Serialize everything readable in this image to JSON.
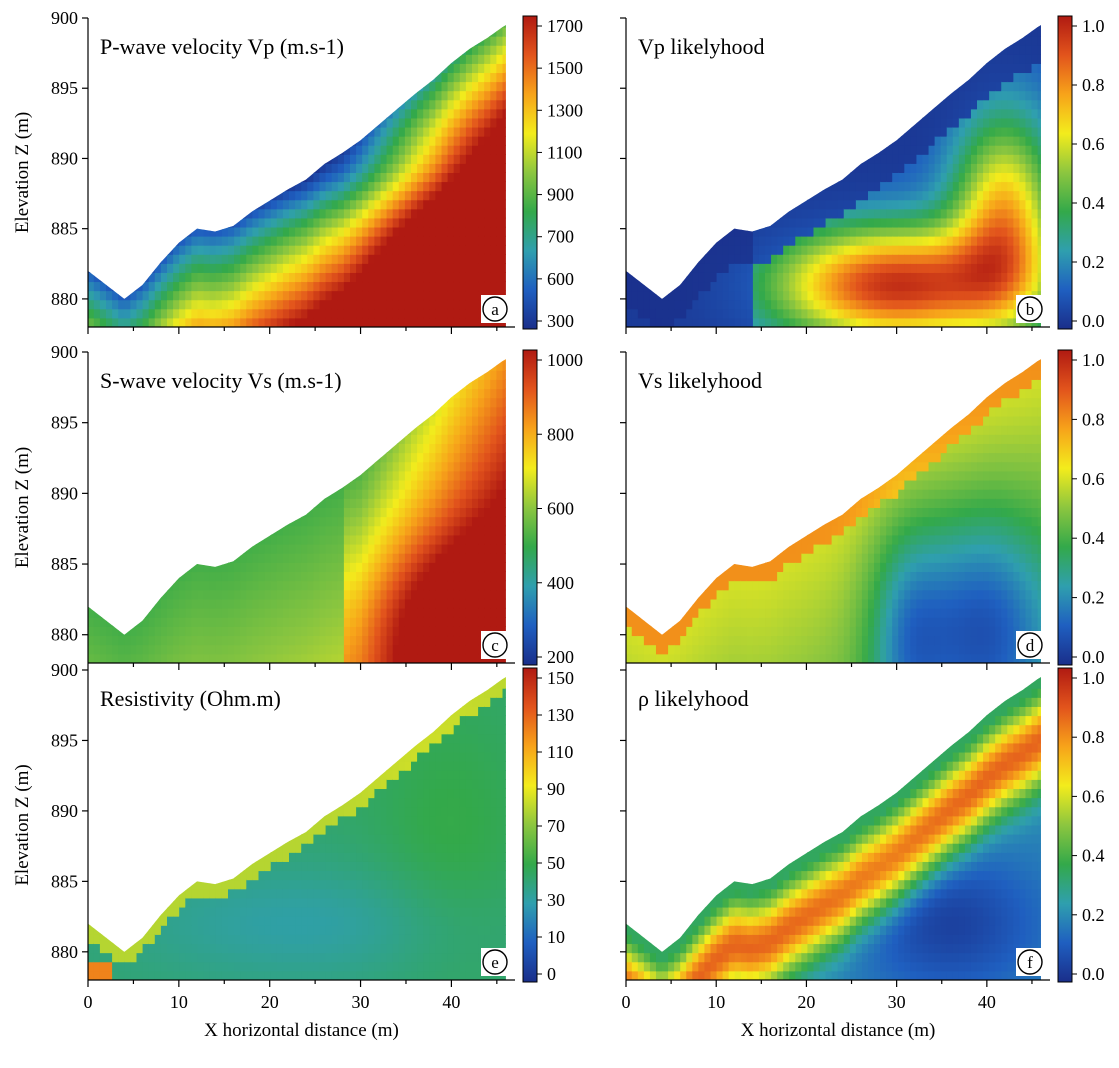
{
  "colors": {
    "scale": [
      "#1a2e8a",
      "#1f5fc0",
      "#2f9fae",
      "#33a94a",
      "#8cc63f",
      "#f3ec1c",
      "#f7a31a",
      "#e2541c",
      "#b01a12"
    ],
    "scale_narrow": [
      "#2e4ca8",
      "#2f88c7",
      "#2fb2a6",
      "#45b64b",
      "#b8d435",
      "#f4ec22",
      "#f5b51f",
      "#e9691c",
      "#d4421a"
    ],
    "frame": "#000000"
  },
  "chart_data": [
    {
      "id": "a",
      "type": "heatmap",
      "title": "P-wave velocity Vp (m.s-1)",
      "ylabel": "Elevation Z (m)",
      "xlabel": "",
      "xlim": [
        0,
        47
      ],
      "ylim": [
        878,
        900
      ],
      "y_ticks": [
        "900",
        "895",
        "890",
        "885",
        "880"
      ],
      "x_ticks": [],
      "colorbar": {
        "min": 200,
        "max": 1800,
        "ticks": [
          "1700",
          "1500",
          "1300",
          "1100",
          "900",
          "700",
          "600",
          "300"
        ]
      },
      "badge": "a",
      "fields": [
        {
          "x_top": 0,
          "y_top": 880,
          "x_bot": 47,
          "y_bot": 878,
          "v": 1700
        }
      ]
    },
    {
      "id": "b",
      "type": "heatmap",
      "title": "Vp likelyhood",
      "ylabel": "",
      "xlabel": "",
      "xlim": [
        0,
        47
      ],
      "ylim": [
        878,
        900
      ],
      "y_ticks": [],
      "x_ticks": [],
      "colorbar": {
        "min": 0,
        "max": 1,
        "ticks": [
          "1.0",
          "0.8",
          "0.6",
          "0.4",
          "0.2",
          "0.0"
        ]
      },
      "badge": "b"
    },
    {
      "id": "c",
      "type": "heatmap",
      "title": "S-wave velocity Vs (m.s-1)",
      "ylabel": "Elevation Z (m)",
      "xlabel": "",
      "xlim": [
        0,
        47
      ],
      "ylim": [
        878,
        900
      ],
      "y_ticks": [
        "900",
        "895",
        "890",
        "885",
        "880"
      ],
      "x_ticks": [],
      "colorbar": {
        "min": 50,
        "max": 1050,
        "ticks": [
          "1000",
          "800",
          "600",
          "400",
          "200"
        ]
      },
      "badge": "c"
    },
    {
      "id": "d",
      "type": "heatmap",
      "title": "Vs likelyhood",
      "ylabel": "",
      "xlabel": "",
      "xlim": [
        0,
        47
      ],
      "ylim": [
        878,
        900
      ],
      "y_ticks": [],
      "x_ticks": [],
      "colorbar": {
        "min": 0,
        "max": 1,
        "ticks": [
          "1.0",
          "0.8",
          "0.6",
          "0.4",
          "0.2",
          "0.0"
        ]
      },
      "badge": "d"
    },
    {
      "id": "e",
      "type": "heatmap",
      "title": "Resistivity (Ohm.m)",
      "ylabel": "Elevation Z (m)",
      "xlabel": "X horizontal distance (m)",
      "xlim": [
        0,
        47
      ],
      "ylim": [
        878,
        900
      ],
      "y_ticks": [
        "900",
        "895",
        "890",
        "885",
        "880"
      ],
      "x_ticks": [
        "0",
        "10",
        "20",
        "30",
        "40"
      ],
      "colorbar": {
        "min": 0,
        "max": 155,
        "ticks": [
          "150",
          "130",
          "110",
          "90",
          "70",
          "50",
          "30",
          "10",
          "0"
        ]
      },
      "badge": "e"
    },
    {
      "id": "f",
      "type": "heatmap",
      "title": "ρ likelyhood",
      "ylabel": "",
      "xlabel": "X horizontal distance (m)",
      "xlim": [
        0,
        47
      ],
      "ylim": [
        878,
        900
      ],
      "y_ticks": [],
      "x_ticks": [
        "0",
        "10",
        "20",
        "30",
        "40"
      ],
      "colorbar": {
        "min": 0,
        "max": 1,
        "ticks": [
          "1.0",
          "0.8",
          "0.6",
          "0.4",
          "0.2",
          "0.0"
        ]
      },
      "badge": "f"
    }
  ]
}
